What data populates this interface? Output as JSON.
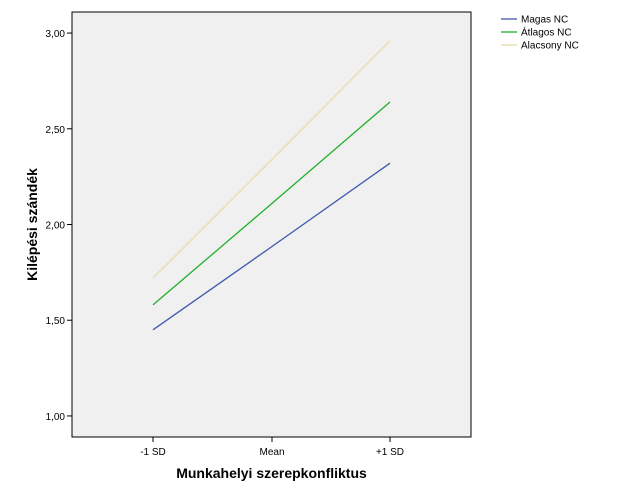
{
  "chart_data": {
    "type": "line",
    "categories": [
      "-1 SD",
      "Mean",
      "+1 SD"
    ],
    "xlabel": "Munkahelyi szerepkonfliktus",
    "ylabel": "Kilépési szándék",
    "ylim": [
      0.89,
      3.11
    ],
    "yticks": [
      "1,00",
      "1,50",
      "2,00",
      "2,50",
      "3,00"
    ],
    "ytick_values": [
      1.0,
      1.5,
      2.0,
      2.5,
      3.0
    ],
    "legend_position": "top-right, outside plot",
    "grid": false,
    "plot_background": "#f0f0f0",
    "series": [
      {
        "name": "Magas NC",
        "color": "#3e58ac",
        "values": [
          1.45,
          1.885,
          2.32
        ]
      },
      {
        "name": "Átlagos NC",
        "color": "#21b02b",
        "values": [
          1.58,
          2.11,
          2.64
        ]
      },
      {
        "name": "Alacsony NC",
        "color": "#e6dcaa",
        "values": [
          1.72,
          2.34,
          2.96
        ]
      }
    ]
  }
}
